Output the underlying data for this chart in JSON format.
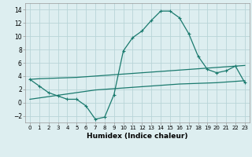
{
  "x": [
    0,
    1,
    2,
    3,
    4,
    5,
    6,
    7,
    8,
    9,
    10,
    11,
    12,
    13,
    14,
    15,
    16,
    17,
    18,
    19,
    20,
    21,
    22,
    23
  ],
  "line1": [
    3.5,
    2.5,
    1.5,
    1.0,
    0.5,
    0.5,
    -0.5,
    -2.5,
    -2.2,
    1.2,
    7.8,
    9.8,
    10.8,
    12.4,
    13.8,
    13.8,
    12.8,
    10.4,
    7.0,
    5.0,
    4.5,
    4.8,
    5.5,
    3.0
  ],
  "line2": [
    3.5,
    3.6,
    3.65,
    3.7,
    3.75,
    3.8,
    3.9,
    4.0,
    4.1,
    4.2,
    4.3,
    4.4,
    4.5,
    4.6,
    4.7,
    4.8,
    4.9,
    5.0,
    5.1,
    5.2,
    5.3,
    5.4,
    5.5,
    5.6
  ],
  "line3": [
    0.5,
    0.7,
    0.9,
    1.1,
    1.3,
    1.5,
    1.7,
    1.9,
    2.0,
    2.1,
    2.2,
    2.3,
    2.4,
    2.5,
    2.6,
    2.7,
    2.8,
    2.85,
    2.9,
    2.95,
    3.0,
    3.1,
    3.2,
    3.3
  ],
  "line_color": "#1a7a6e",
  "bg_color": "#ddeef0",
  "grid_color": "#b8d4d8",
  "xlabel": "Humidex (Indice chaleur)",
  "ylim": [
    -3,
    15
  ],
  "xlim": [
    -0.5,
    23.5
  ],
  "yticks": [
    -2,
    0,
    2,
    4,
    6,
    8,
    10,
    12,
    14
  ],
  "xticks": [
    0,
    1,
    2,
    3,
    4,
    5,
    6,
    7,
    8,
    9,
    10,
    11,
    12,
    13,
    14,
    15,
    16,
    17,
    18,
    19,
    20,
    21,
    22,
    23
  ]
}
